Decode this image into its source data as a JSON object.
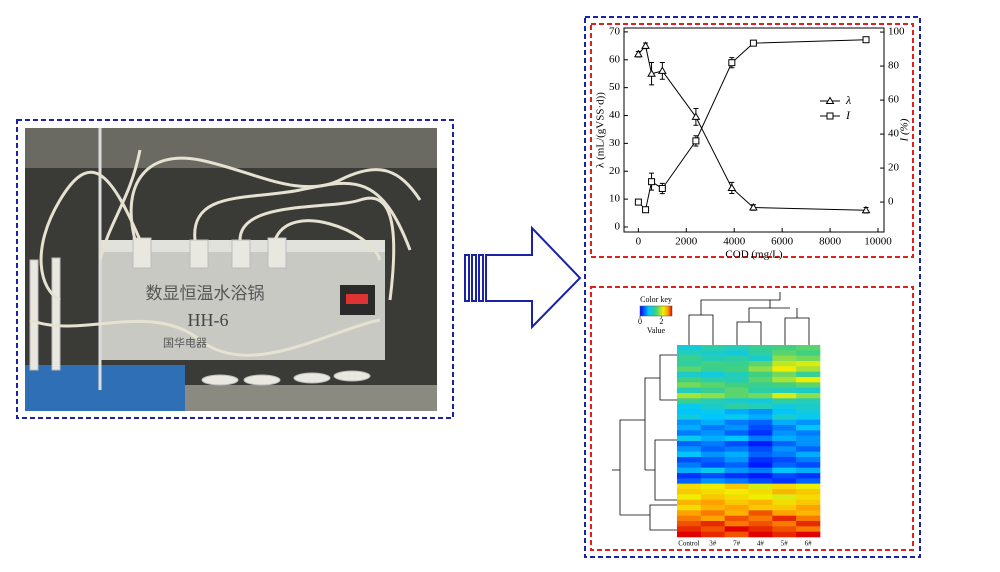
{
  "chart_data": [
    {
      "type": "line",
      "xlabel": "COD (mg/L)",
      "ylabel": "λ (mL/(gVSS·d))",
      "y2label": "I (%)",
      "x": [
        0,
        300,
        550,
        1000,
        2400,
        3900,
        4800,
        9500
      ],
      "xlim": [
        -600,
        10250
      ],
      "xticks": [
        0,
        2000,
        4000,
        6000,
        8000,
        10000
      ],
      "ylim": [
        -1.8,
        71.4
      ],
      "yticks": [
        0,
        10,
        20,
        30,
        40,
        50,
        60,
        70
      ],
      "y2lim": [
        -17.6,
        102.4
      ],
      "y2ticks": [
        0,
        20,
        40,
        60,
        80,
        100
      ],
      "legend": "right",
      "series": [
        {
          "name": "λ",
          "color": "#000000",
          "marker": "triangle",
          "values": [
            62,
            65,
            55,
            56,
            39.5,
            14,
            7,
            6
          ],
          "errors": [
            1,
            1,
            4,
            3,
            3,
            2,
            1,
            1
          ]
        },
        {
          "name": "I",
          "color": "#000000",
          "marker": "square",
          "axis": "y2",
          "values": [
            0,
            -4.5,
            12,
            8,
            36,
            82,
            93.5,
            95.5
          ],
          "errors": [
            1,
            1,
            5,
            3,
            3,
            3,
            1,
            1
          ]
        }
      ]
    },
    {
      "type": "heatmap",
      "categories": [
        "Control",
        "3#",
        "7#",
        "4#",
        "5#",
        "6#"
      ],
      "colorbar_title": "Color key",
      "colorbar_label": "Value",
      "zlim": [
        0,
        3
      ],
      "zticks": [
        0,
        2
      ],
      "values": [
        [
          1.0,
          1.3,
          1.2,
          1.4,
          1.5,
          1.6
        ],
        [
          1.2,
          1.1,
          1.0,
          1.3,
          1.6,
          1.5
        ],
        [
          1.4,
          1.2,
          1.3,
          1.1,
          1.8,
          1.7
        ],
        [
          1.3,
          1.5,
          1.4,
          1.6,
          2.0,
          2.1
        ],
        [
          1.6,
          1.4,
          1.5,
          1.8,
          2.2,
          1.9
        ],
        [
          1.1,
          1.0,
          1.2,
          1.5,
          1.7,
          1.4
        ],
        [
          1.5,
          1.3,
          1.2,
          1.6,
          1.9,
          2.2
        ],
        [
          1.7,
          1.6,
          1.5,
          1.4,
          1.5,
          1.6
        ],
        [
          1.2,
          1.4,
          1.6,
          1.3,
          1.2,
          1.1
        ],
        [
          1.9,
          1.8,
          1.6,
          1.7,
          2.1,
          1.8
        ],
        [
          1.4,
          1.2,
          1.1,
          1.0,
          1.3,
          1.2
        ],
        [
          0.9,
          1.1,
          1.3,
          1.2,
          1.0,
          1.1
        ],
        [
          0.8,
          0.9,
          0.7,
          0.6,
          0.8,
          1.0
        ],
        [
          1.0,
          0.8,
          0.9,
          0.7,
          1.1,
          0.9
        ],
        [
          0.6,
          0.7,
          0.5,
          0.4,
          0.7,
          0.6
        ],
        [
          0.7,
          0.5,
          0.6,
          0.3,
          0.5,
          0.8
        ],
        [
          0.5,
          0.6,
          0.4,
          0.2,
          0.6,
          0.5
        ],
        [
          0.9,
          0.7,
          0.8,
          0.5,
          0.7,
          0.6
        ],
        [
          0.4,
          0.5,
          0.3,
          0.1,
          0.4,
          0.6
        ],
        [
          0.6,
          0.4,
          0.5,
          0.3,
          0.6,
          0.4
        ],
        [
          0.8,
          0.6,
          0.7,
          0.4,
          0.5,
          0.7
        ],
        [
          0.3,
          0.4,
          0.6,
          0.2,
          0.3,
          0.5
        ],
        [
          0.5,
          0.3,
          0.4,
          0.1,
          0.4,
          0.3
        ],
        [
          0.7,
          0.9,
          0.6,
          0.5,
          0.8,
          0.7
        ],
        [
          0.2,
          0.3,
          0.2,
          0.1,
          0.3,
          0.2
        ],
        [
          0.4,
          0.6,
          0.5,
          0.3,
          0.2,
          0.4
        ],
        [
          2.3,
          2.2,
          2.4,
          2.1,
          2.3,
          2.2
        ],
        [
          2.4,
          2.3,
          2.2,
          2.3,
          2.5,
          2.4
        ],
        [
          2.2,
          2.4,
          2.3,
          2.2,
          2.1,
          2.3
        ],
        [
          2.5,
          2.6,
          2.4,
          2.5,
          2.3,
          2.4
        ],
        [
          2.3,
          2.5,
          2.6,
          2.4,
          2.4,
          2.6
        ],
        [
          2.6,
          2.7,
          2.5,
          2.8,
          2.6,
          2.5
        ],
        [
          2.7,
          2.6,
          2.8,
          2.7,
          2.9,
          2.7
        ],
        [
          2.8,
          2.9,
          2.7,
          2.8,
          2.7,
          2.9
        ],
        [
          2.9,
          2.8,
          3.0,
          2.9,
          2.8,
          2.7
        ],
        [
          3.0,
          2.9,
          2.8,
          3.0,
          2.9,
          3.0
        ]
      ]
    }
  ],
  "photo": {
    "texts": [
      "数显恒温水浴锅",
      "HH-6",
      "国华电器"
    ]
  }
}
